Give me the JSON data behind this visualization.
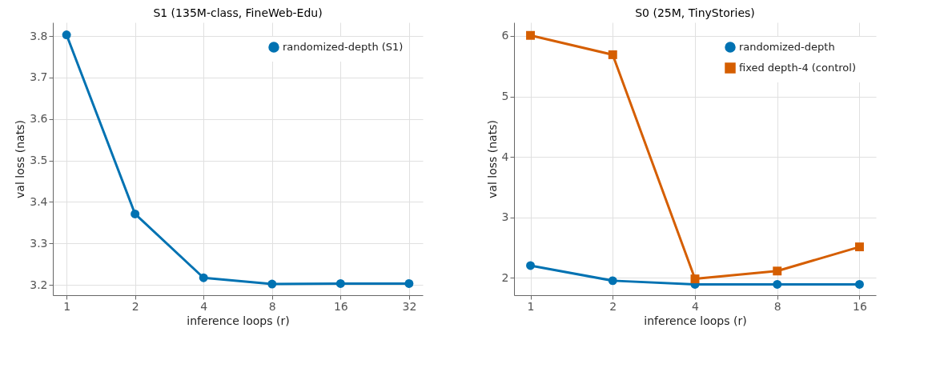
{
  "chart_data": [
    {
      "type": "line",
      "title": "S1 (135M-class, FineWeb-Edu)",
      "xlabel": "inference loops (r)",
      "ylabel": "val loss (nats)",
      "categories": [
        "1",
        "2",
        "4",
        "8",
        "16",
        "32"
      ],
      "ylim": [
        3.175,
        3.833
      ],
      "yticks": [
        3.2,
        3.3,
        3.4,
        3.5,
        3.6,
        3.7,
        3.8
      ],
      "grid": true,
      "legend": "top right",
      "series": [
        {
          "name": "randomized-depth (S1)",
          "color": "#0072b2",
          "marker": "circle",
          "values": [
            3.803,
            3.371,
            3.217,
            3.202,
            3.203,
            3.203
          ]
        }
      ]
    },
    {
      "type": "line",
      "title": "S0 (25M, TinyStories)",
      "xlabel": "inference loops (r)",
      "ylabel": "val loss (nats)",
      "categories": [
        "1",
        "2",
        "4",
        "8",
        "16"
      ],
      "ylim": [
        1.71,
        6.225
      ],
      "yticks": [
        2,
        3,
        4,
        5,
        6
      ],
      "grid": true,
      "legend": "top right",
      "series": [
        {
          "name": "randomized-depth",
          "color": "#0072b2",
          "marker": "circle",
          "values": [
            2.2,
            1.95,
            1.89,
            1.89,
            1.89
          ]
        },
        {
          "name": "fixed depth-4 (control)",
          "color": "#d55e00",
          "marker": "square",
          "values": [
            6.01,
            5.69,
            1.98,
            2.11,
            2.51
          ]
        }
      ]
    }
  ]
}
